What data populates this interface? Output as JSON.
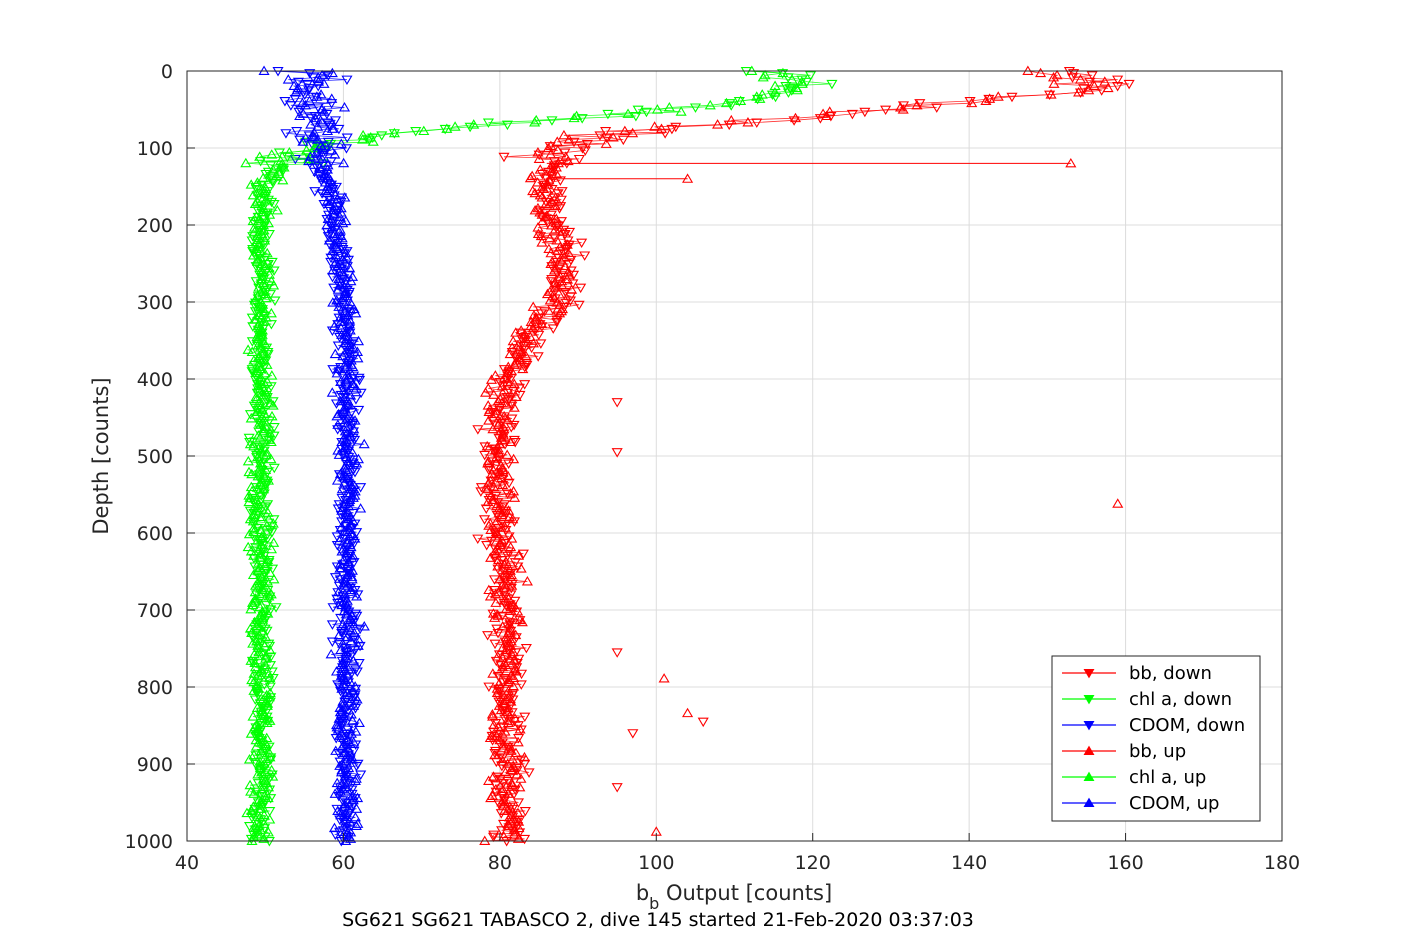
{
  "chart_data": {
    "type": "scatter",
    "title": "",
    "caption": "SG621 SG621 TABASCO 2, dive 145 started 21-Feb-2020 03:37:03",
    "xlabel": {
      "base": "b",
      "subscript": "b",
      "rest": " Output [counts]"
    },
    "ylabel": "Depth [counts]",
    "xlim": [
      40,
      180
    ],
    "ylim": [
      0,
      1000
    ],
    "y_reversed": true,
    "xticks": [
      "40",
      "60",
      "80",
      "100",
      "120",
      "140",
      "160",
      "180"
    ],
    "yticks": [
      "0",
      "100",
      "200",
      "300",
      "400",
      "500",
      "600",
      "700",
      "800",
      "900",
      "1000"
    ],
    "grid": true,
    "legend_position": "bottom-right",
    "series": [
      {
        "name": "bb, down",
        "color": "#ff0000",
        "marker": "triangle-down",
        "depth": [
          0,
          10,
          20,
          40,
          60,
          80,
          100,
          120,
          150,
          200,
          250,
          300,
          350,
          400,
          450,
          500,
          600,
          700,
          800,
          900,
          1000
        ],
        "value": [
          150,
          155,
          160,
          140,
          120,
          95,
          89,
          87,
          86,
          87,
          89,
          88,
          84,
          81,
          80,
          80,
          80,
          81,
          81,
          81,
          81
        ]
      },
      {
        "name": "chl a, down",
        "color": "#00ff00",
        "marker": "triangle-down",
        "depth": [
          0,
          10,
          20,
          40,
          60,
          80,
          100,
          120,
          150,
          200,
          250,
          300,
          400,
          500,
          600,
          700,
          800,
          900,
          1000
        ],
        "value": [
          112,
          118,
          120,
          112,
          92,
          68,
          55,
          52,
          50,
          49.5,
          49.5,
          49.5,
          49.5,
          49.5,
          49.5,
          49.5,
          49.5,
          49.5,
          49.5
        ]
      },
      {
        "name": "CDOM, down",
        "color": "#0000ff",
        "marker": "triangle-down",
        "depth": [
          0,
          50,
          100,
          150,
          200,
          300,
          400,
          500,
          600,
          700,
          800,
          900,
          1000
        ],
        "value": [
          55,
          56,
          57,
          58,
          59,
          60,
          60.5,
          60.5,
          60.5,
          60.5,
          60.5,
          60.5,
          60.5
        ]
      },
      {
        "name": "bb, up",
        "color": "#ff0000",
        "marker": "triangle-up",
        "depth": [
          0,
          10,
          20,
          40,
          60,
          80,
          100,
          120,
          150,
          200,
          250,
          300,
          350,
          400,
          450,
          500,
          600,
          700,
          800,
          900,
          1000
        ],
        "value": [
          148,
          152,
          158,
          142,
          118,
          94,
          88,
          86,
          85,
          86,
          88,
          87,
          83,
          80,
          80,
          80,
          80,
          81,
          81,
          81,
          81
        ]
      },
      {
        "name": "chl a, up",
        "color": "#00ff00",
        "marker": "triangle-up",
        "depth": [
          0,
          10,
          20,
          40,
          60,
          80,
          100,
          120,
          150,
          200,
          250,
          300,
          400,
          500,
          600,
          700,
          800,
          900,
          1000
        ],
        "value": [
          111,
          116,
          118,
          110,
          90,
          67,
          55,
          52,
          50,
          49.5,
          49.5,
          49.5,
          49.5,
          49.5,
          49.5,
          49.5,
          49.5,
          49.5,
          49.5
        ]
      },
      {
        "name": "CDOM, up",
        "color": "#0000ff",
        "marker": "triangle-up",
        "depth": [
          0,
          50,
          100,
          150,
          200,
          300,
          400,
          500,
          600,
          700,
          800,
          900,
          1000
        ],
        "value": [
          55,
          56,
          57,
          58,
          59,
          60,
          60.5,
          60.5,
          60.5,
          60.5,
          60.5,
          60.5,
          60.5
        ]
      }
    ],
    "outliers": [
      {
        "series": "bb, up",
        "value": 153,
        "depth": 120
      },
      {
        "series": "bb, up",
        "value": 104,
        "depth": 140
      },
      {
        "series": "bb, up",
        "value": 159,
        "depth": 562
      },
      {
        "series": "bb, up",
        "value": 101,
        "depth": 789
      },
      {
        "series": "bb, up",
        "value": 104,
        "depth": 834
      },
      {
        "series": "bb, up",
        "value": 100,
        "depth": 988
      },
      {
        "series": "bb, down",
        "value": 95,
        "depth": 430
      },
      {
        "series": "bb, down",
        "value": 95,
        "depth": 495
      },
      {
        "series": "bb, down",
        "value": 106,
        "depth": 845
      },
      {
        "series": "bb, down",
        "value": 97,
        "depth": 860
      },
      {
        "series": "bb, down",
        "value": 95,
        "depth": 930
      },
      {
        "series": "bb, down",
        "value": 95,
        "depth": 755
      }
    ]
  }
}
